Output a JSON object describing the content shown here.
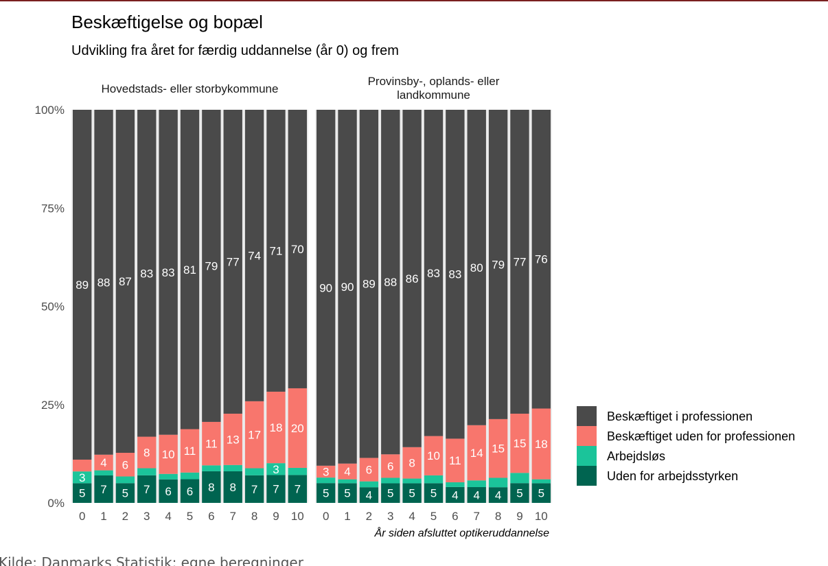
{
  "chart_data": {
    "type": "bar",
    "stacked": true,
    "percent_stacked": true,
    "title": "Beskæftigelse og bopæl",
    "subtitle": "Udvikling fra året for færdig uddannelse (år 0) og frem",
    "xlabel": "År siden afsluttet optikeruddannelse",
    "ylabel": "",
    "y_ticks": [
      "0%",
      "25%",
      "50%",
      "75%",
      "100%"
    ],
    "ylim": [
      0,
      100
    ],
    "categories": [
      "0",
      "1",
      "2",
      "3",
      "4",
      "5",
      "6",
      "7",
      "8",
      "9",
      "10"
    ],
    "caption": "Kilde: Danmarks Statistik; egne beregninger",
    "legend_position": "right",
    "grid": false,
    "legend": [
      {
        "name": "Beskæftiget i professionen",
        "color": "#4a4a4a"
      },
      {
        "name": "Beskæftiget uden for professionen",
        "color": "#f8766d"
      },
      {
        "name": "Arbejdsløs",
        "color": "#1bc49a"
      },
      {
        "name": "Uden for arbejdsstyrken",
        "color": "#006450"
      }
    ],
    "panels": [
      {
        "strip": [
          "Hovedstads- eller storbykommune"
        ],
        "series": [
          {
            "name": "Uden for arbejdsstyrken",
            "values": [
              5,
              7,
              5,
              7,
              6,
              6,
              8,
              8,
              7,
              7,
              7
            ],
            "labels": [
              "5",
              "7",
              "5",
              "7",
              "6",
              "6",
              "8",
              "8",
              "7",
              "7",
              "7"
            ]
          },
          {
            "name": "Arbejdsløs",
            "values": [
              3,
              1.3,
              1.7,
              1.8,
              1.4,
              1.7,
              1.5,
              1.6,
              1.8,
              3,
              1.8
            ],
            "labels": [
              "3",
              "",
              "",
              "",
              "",
              "",
              "",
              "",
              "",
              "3",
              ""
            ]
          },
          {
            "name": "Beskæftiget uden for professionen",
            "values": [
              3,
              4,
              6,
              8,
              10,
              11,
              11,
              13,
              17,
              18,
              20
            ],
            "labels": [
              "",
              "4",
              "6",
              "8",
              "10",
              "11",
              "11",
              "13",
              "17",
              "18",
              "20"
            ]
          },
          {
            "name": "Beskæftiget i professionen",
            "values": [
              89,
              88,
              87,
              83,
              83,
              81,
              79,
              77,
              74,
              71,
              70
            ],
            "labels": [
              "89",
              "88",
              "87",
              "83",
              "83",
              "81",
              "79",
              "77",
              "74",
              "71",
              "70"
            ]
          }
        ]
      },
      {
        "strip": [
          "Provinsby-, oplands- eller",
          "landkommune"
        ],
        "series": [
          {
            "name": "Uden for arbejdsstyrken",
            "values": [
              5,
              5,
              4,
              5,
              5,
              5,
              4,
              4,
              4,
              5,
              5
            ],
            "labels": [
              "5",
              "5",
              "4",
              "5",
              "5",
              "5",
              "4",
              "4",
              "4",
              "5",
              "5"
            ]
          },
          {
            "name": "Arbejdsløs",
            "values": [
              1.4,
              1.0,
              1.5,
              1.4,
              1.2,
              2.0,
              1.2,
              1.7,
              2.4,
              2.6,
              1.0
            ],
            "labels": [
              "",
              "",
              "",
              "",
              "",
              "",
              "",
              "",
              "",
              "",
              ""
            ]
          },
          {
            "name": "Beskæftiget uden for professionen",
            "values": [
              3,
              4,
              6,
              6,
              8,
              10,
              11,
              14,
              15,
              15,
              18
            ],
            "labels": [
              "3",
              "4",
              "6",
              "6",
              "8",
              "10",
              "11",
              "14",
              "15",
              "15",
              "18"
            ]
          },
          {
            "name": "Beskæftiget i professionen",
            "values": [
              90,
              90,
              89,
              88,
              86,
              83,
              83,
              80,
              79,
              77,
              76
            ],
            "labels": [
              "90",
              "90",
              "89",
              "88",
              "86",
              "83",
              "83",
              "80",
              "79",
              "77",
              "76"
            ]
          }
        ]
      }
    ]
  }
}
